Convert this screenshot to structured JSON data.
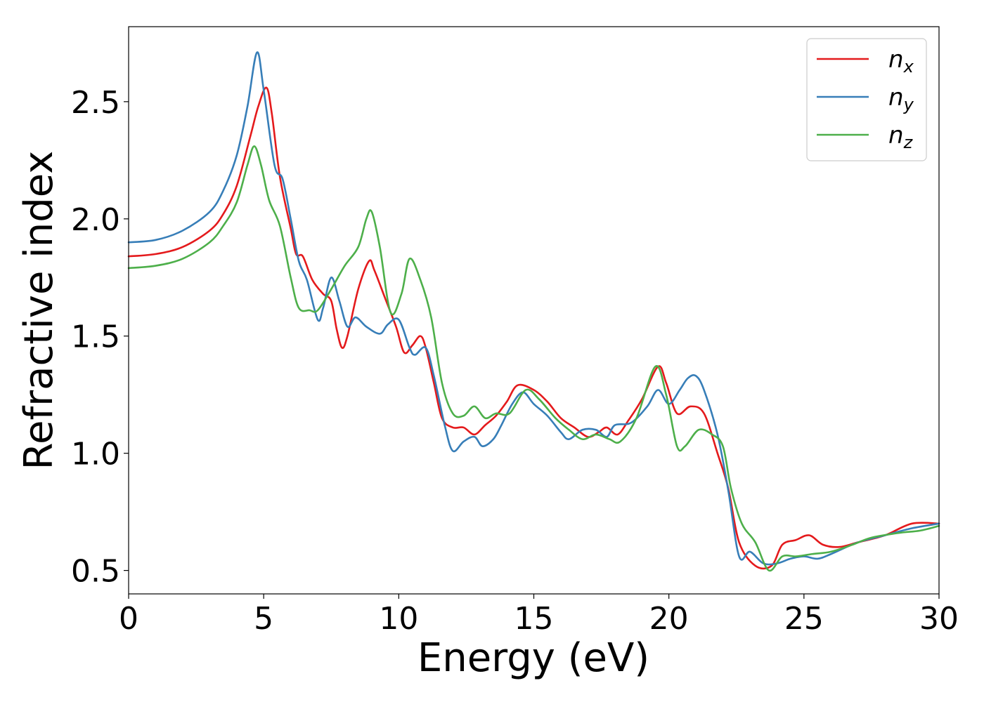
{
  "chart_data": {
    "type": "line",
    "xlabel": "Energy (eV)",
    "ylabel": "Refractive index",
    "xlim": [
      0,
      30
    ],
    "ylim": [
      0.4,
      2.82
    ],
    "xticks": [
      0,
      5,
      10,
      15,
      20,
      25,
      30
    ],
    "yticks": [
      0.5,
      1.0,
      1.5,
      2.0,
      2.5
    ],
    "xtick_labels": [
      "0",
      "5",
      "10",
      "15",
      "20",
      "25",
      "30"
    ],
    "ytick_labels": [
      "0.5",
      "1.0",
      "1.5",
      "2.0",
      "2.5"
    ],
    "grid": false,
    "legend_position": "top-right",
    "series": [
      {
        "name": "n_x",
        "label_base": "n",
        "label_sub": "x",
        "color": "#e41a1c",
        "points": [
          [
            0,
            1.84
          ],
          [
            1,
            1.85
          ],
          [
            2,
            1.88
          ],
          [
            3,
            1.95
          ],
          [
            3.5,
            2.02
          ],
          [
            4,
            2.14
          ],
          [
            4.5,
            2.35
          ],
          [
            4.8,
            2.48
          ],
          [
            5.1,
            2.56
          ],
          [
            5.3,
            2.45
          ],
          [
            5.6,
            2.18
          ],
          [
            6,
            1.96
          ],
          [
            6.2,
            1.85
          ],
          [
            6.45,
            1.84
          ],
          [
            6.8,
            1.74
          ],
          [
            7.2,
            1.68
          ],
          [
            7.5,
            1.65
          ],
          [
            7.7,
            1.53
          ],
          [
            7.9,
            1.45
          ],
          [
            8.1,
            1.5
          ],
          [
            8.5,
            1.7
          ],
          [
            8.9,
            1.82
          ],
          [
            9.1,
            1.78
          ],
          [
            9.5,
            1.66
          ],
          [
            9.9,
            1.54
          ],
          [
            10.2,
            1.43
          ],
          [
            10.5,
            1.46
          ],
          [
            10.8,
            1.5
          ],
          [
            11.0,
            1.45
          ],
          [
            11.3,
            1.3
          ],
          [
            11.6,
            1.15
          ],
          [
            12,
            1.11
          ],
          [
            12.4,
            1.11
          ],
          [
            12.8,
            1.08
          ],
          [
            13.2,
            1.12
          ],
          [
            13.6,
            1.16
          ],
          [
            14,
            1.22
          ],
          [
            14.4,
            1.29
          ],
          [
            15,
            1.27
          ],
          [
            15.5,
            1.22
          ],
          [
            16,
            1.15
          ],
          [
            16.5,
            1.11
          ],
          [
            17,
            1.07
          ],
          [
            17.4,
            1.09
          ],
          [
            17.7,
            1.11
          ],
          [
            18.1,
            1.08
          ],
          [
            18.5,
            1.14
          ],
          [
            19,
            1.23
          ],
          [
            19.6,
            1.37
          ],
          [
            19.9,
            1.3
          ],
          [
            20.3,
            1.17
          ],
          [
            20.8,
            1.2
          ],
          [
            21.3,
            1.17
          ],
          [
            21.8,
            1.0
          ],
          [
            22.2,
            0.85
          ],
          [
            22.6,
            0.62
          ],
          [
            23.2,
            0.52
          ],
          [
            23.8,
            0.52
          ],
          [
            24.2,
            0.61
          ],
          [
            24.7,
            0.63
          ],
          [
            25.2,
            0.65
          ],
          [
            25.7,
            0.61
          ],
          [
            26.3,
            0.6
          ],
          [
            27,
            0.62
          ],
          [
            28,
            0.65
          ],
          [
            29,
            0.7
          ],
          [
            30,
            0.7
          ]
        ]
      },
      {
        "name": "n_y",
        "label_base": "n",
        "label_sub": "y",
        "color": "#377eb8",
        "points": [
          [
            0,
            1.9
          ],
          [
            1,
            1.91
          ],
          [
            2,
            1.95
          ],
          [
            3,
            2.03
          ],
          [
            3.5,
            2.12
          ],
          [
            4,
            2.27
          ],
          [
            4.4,
            2.48
          ],
          [
            4.75,
            2.71
          ],
          [
            5.0,
            2.55
          ],
          [
            5.4,
            2.23
          ],
          [
            5.7,
            2.17
          ],
          [
            6,
            2.0
          ],
          [
            6.3,
            1.82
          ],
          [
            6.6,
            1.74
          ],
          [
            7.0,
            1.57
          ],
          [
            7.2,
            1.62
          ],
          [
            7.5,
            1.75
          ],
          [
            7.8,
            1.65
          ],
          [
            8.1,
            1.54
          ],
          [
            8.4,
            1.58
          ],
          [
            8.8,
            1.54
          ],
          [
            9.3,
            1.51
          ],
          [
            9.6,
            1.55
          ],
          [
            10,
            1.57
          ],
          [
            10.4,
            1.45
          ],
          [
            10.6,
            1.42
          ],
          [
            11,
            1.45
          ],
          [
            11.3,
            1.33
          ],
          [
            11.7,
            1.12
          ],
          [
            12.0,
            1.01
          ],
          [
            12.4,
            1.05
          ],
          [
            12.8,
            1.07
          ],
          [
            13.1,
            1.03
          ],
          [
            13.5,
            1.06
          ],
          [
            13.8,
            1.12
          ],
          [
            14.2,
            1.21
          ],
          [
            14.6,
            1.26
          ],
          [
            15,
            1.21
          ],
          [
            15.5,
            1.16
          ],
          [
            16,
            1.09
          ],
          [
            16.3,
            1.06
          ],
          [
            16.8,
            1.1
          ],
          [
            17.3,
            1.1
          ],
          [
            17.7,
            1.07
          ],
          [
            18,
            1.12
          ],
          [
            18.6,
            1.13
          ],
          [
            19.2,
            1.2
          ],
          [
            19.6,
            1.27
          ],
          [
            20,
            1.21
          ],
          [
            20.4,
            1.27
          ],
          [
            20.7,
            1.32
          ],
          [
            21,
            1.33
          ],
          [
            21.3,
            1.27
          ],
          [
            21.8,
            1.08
          ],
          [
            22.2,
            0.84
          ],
          [
            22.6,
            0.56
          ],
          [
            23,
            0.58
          ],
          [
            23.5,
            0.53
          ],
          [
            24,
            0.53
          ],
          [
            24.5,
            0.55
          ],
          [
            25,
            0.56
          ],
          [
            25.5,
            0.55
          ],
          [
            26,
            0.57
          ],
          [
            27,
            0.62
          ],
          [
            28,
            0.65
          ],
          [
            29,
            0.68
          ],
          [
            30,
            0.7
          ]
        ]
      },
      {
        "name": "n_z",
        "label_base": "n",
        "label_sub": "z",
        "color": "#4daf4a",
        "points": [
          [
            0,
            1.79
          ],
          [
            1,
            1.8
          ],
          [
            2,
            1.83
          ],
          [
            3,
            1.9
          ],
          [
            3.5,
            1.97
          ],
          [
            4,
            2.07
          ],
          [
            4.4,
            2.23
          ],
          [
            4.65,
            2.31
          ],
          [
            4.9,
            2.23
          ],
          [
            5.2,
            2.08
          ],
          [
            5.6,
            1.97
          ],
          [
            6,
            1.75
          ],
          [
            6.3,
            1.62
          ],
          [
            6.7,
            1.61
          ],
          [
            7.0,
            1.61
          ],
          [
            7.5,
            1.7
          ],
          [
            8,
            1.8
          ],
          [
            8.5,
            1.88
          ],
          [
            8.8,
            2.0
          ],
          [
            9.0,
            2.03
          ],
          [
            9.3,
            1.88
          ],
          [
            9.7,
            1.6
          ],
          [
            10.1,
            1.68
          ],
          [
            10.4,
            1.83
          ],
          [
            10.8,
            1.74
          ],
          [
            11.2,
            1.58
          ],
          [
            11.6,
            1.3
          ],
          [
            12.0,
            1.17
          ],
          [
            12.4,
            1.16
          ],
          [
            12.8,
            1.2
          ],
          [
            13.2,
            1.15
          ],
          [
            13.6,
            1.17
          ],
          [
            14.1,
            1.17
          ],
          [
            14.7,
            1.27
          ],
          [
            15.2,
            1.23
          ],
          [
            15.8,
            1.15
          ],
          [
            16.3,
            1.1
          ],
          [
            16.8,
            1.06
          ],
          [
            17.3,
            1.08
          ],
          [
            17.8,
            1.06
          ],
          [
            18.2,
            1.05
          ],
          [
            18.8,
            1.15
          ],
          [
            19.5,
            1.37
          ],
          [
            19.9,
            1.25
          ],
          [
            20.3,
            1.03
          ],
          [
            20.6,
            1.03
          ],
          [
            21.1,
            1.1
          ],
          [
            21.6,
            1.08
          ],
          [
            22.0,
            1.03
          ],
          [
            22.3,
            0.85
          ],
          [
            22.7,
            0.7
          ],
          [
            23.2,
            0.62
          ],
          [
            23.7,
            0.5
          ],
          [
            24.2,
            0.56
          ],
          [
            24.7,
            0.56
          ],
          [
            25.3,
            0.57
          ],
          [
            26,
            0.58
          ],
          [
            26.8,
            0.61
          ],
          [
            27.5,
            0.64
          ],
          [
            28.5,
            0.66
          ],
          [
            29.3,
            0.67
          ],
          [
            30,
            0.69
          ]
        ]
      }
    ]
  }
}
